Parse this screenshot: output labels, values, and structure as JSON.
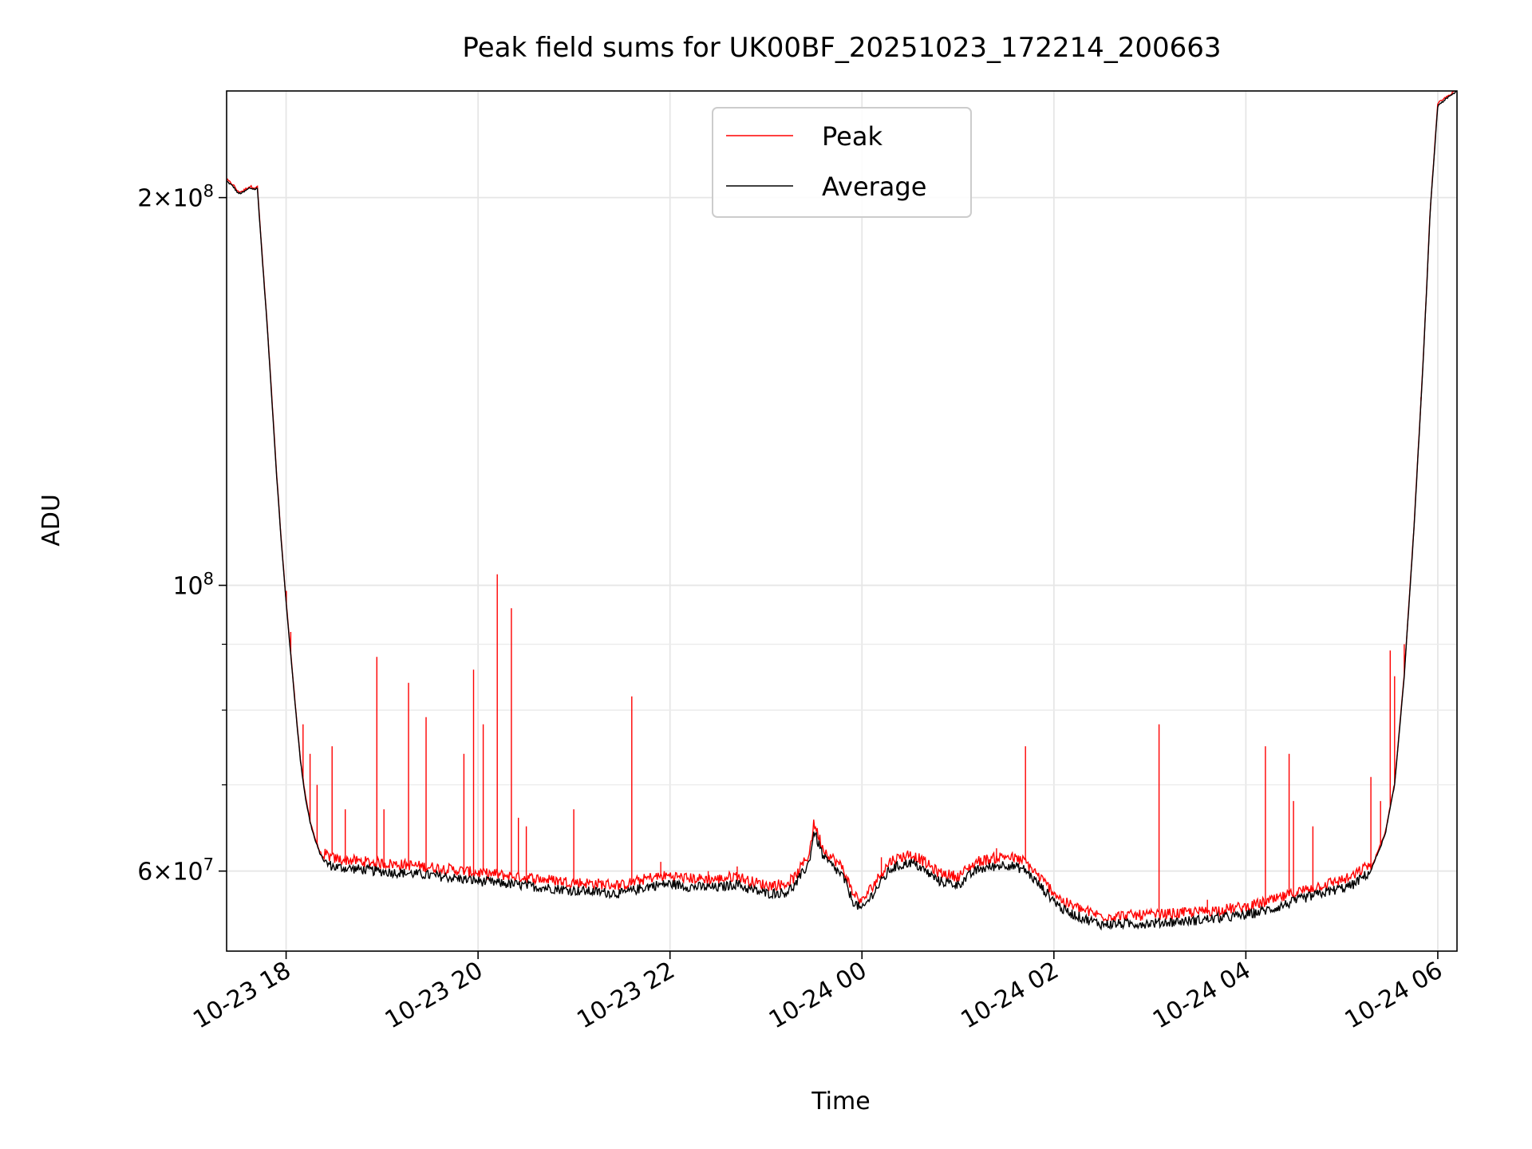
{
  "chart_data": {
    "type": "line",
    "title": "Peak field sums for UK00BF_20251023_172214_200663",
    "xlabel": "Time",
    "ylabel": "ADU",
    "yscale": "log",
    "xlim_hours": [
      -0.62,
      12.2
    ],
    "ylim": [
      52000000,
      242000000
    ],
    "grid": true,
    "legend_position": "upper-center",
    "x_ticks": [
      {
        "hour": 0,
        "label": "10-23 18"
      },
      {
        "hour": 2,
        "label": "10-23 20"
      },
      {
        "hour": 4,
        "label": "10-23 22"
      },
      {
        "hour": 6,
        "label": "10-24 00"
      },
      {
        "hour": 8,
        "label": "10-24 02"
      },
      {
        "hour": 10,
        "label": "10-24 04"
      },
      {
        "hour": 12,
        "label": "10-24 06"
      }
    ],
    "y_major_ticks": [
      {
        "value": 60000000,
        "mant": "6",
        "exp": "7"
      },
      {
        "value": 100000000,
        "mant": "",
        "exp": "8"
      },
      {
        "value": 200000000,
        "mant": "2",
        "exp": "8"
      }
    ],
    "y_minor_ticks": [
      70000000,
      80000000,
      90000000
    ],
    "time_axis_note": "x values are hours relative to 2025-10-23 18:00",
    "series": [
      {
        "name": "Average",
        "color": "#000000",
        "points": [
          [
            -0.62,
            206000000
          ],
          [
            -0.55,
            204000000
          ],
          [
            -0.5,
            201500000
          ],
          [
            -0.45,
            201800000
          ],
          [
            -0.38,
            203500000
          ],
          [
            -0.32,
            203000000
          ],
          [
            -0.3,
            203500000
          ],
          [
            -0.25,
            180000000
          ],
          [
            -0.2,
            160000000
          ],
          [
            -0.15,
            140000000
          ],
          [
            -0.1,
            122000000
          ],
          [
            -0.05,
            108000000
          ],
          [
            0,
            97000000
          ],
          [
            0.05,
            88000000
          ],
          [
            0.1,
            80000000
          ],
          [
            0.15,
            73000000
          ],
          [
            0.2,
            68500000
          ],
          [
            0.25,
            65500000
          ],
          [
            0.3,
            63500000
          ],
          [
            0.35,
            62000000
          ],
          [
            0.4,
            61000000
          ],
          [
            0.5,
            60500000
          ],
          [
            0.7,
            60300000
          ],
          [
            1.0,
            60000000
          ],
          [
            1.3,
            59800000
          ],
          [
            1.6,
            59500000
          ],
          [
            2.0,
            59000000
          ],
          [
            2.5,
            58500000
          ],
          [
            3.0,
            58000000
          ],
          [
            3.5,
            57700000
          ],
          [
            3.8,
            58500000
          ],
          [
            4.0,
            58700000
          ],
          [
            4.2,
            58400000
          ],
          [
            4.5,
            58300000
          ],
          [
            4.7,
            58700000
          ],
          [
            4.8,
            58200000
          ],
          [
            5.0,
            57700000
          ],
          [
            5.2,
            57800000
          ],
          [
            5.3,
            58500000
          ],
          [
            5.45,
            61000000
          ],
          [
            5.5,
            64500000
          ],
          [
            5.6,
            61500000
          ],
          [
            5.8,
            59500000
          ],
          [
            5.9,
            57000000
          ],
          [
            6.0,
            56000000
          ],
          [
            6.1,
            57500000
          ],
          [
            6.3,
            60300000
          ],
          [
            6.5,
            61000000
          ],
          [
            6.6,
            60500000
          ],
          [
            6.8,
            59000000
          ],
          [
            7.0,
            58600000
          ],
          [
            7.2,
            60200000
          ],
          [
            7.5,
            60800000
          ],
          [
            7.7,
            60200000
          ],
          [
            7.9,
            58000000
          ],
          [
            8.1,
            56000000
          ],
          [
            8.3,
            55200000
          ],
          [
            8.5,
            54600000
          ],
          [
            9.0,
            54700000
          ],
          [
            9.5,
            55000000
          ],
          [
            10.0,
            55500000
          ],
          [
            10.3,
            56200000
          ],
          [
            10.6,
            57200000
          ],
          [
            10.9,
            58000000
          ],
          [
            11.1,
            58500000
          ],
          [
            11.3,
            60000000
          ],
          [
            11.45,
            64000000
          ],
          [
            11.55,
            70000000
          ],
          [
            11.65,
            85000000
          ],
          [
            11.75,
            110000000
          ],
          [
            11.85,
            150000000
          ],
          [
            11.92,
            195000000
          ],
          [
            12.0,
            236000000
          ],
          [
            12.2,
            242000000
          ]
        ]
      },
      {
        "name": "Peak",
        "color": "#ff0000",
        "spikes": [
          [
            -0.2,
            148000000
          ],
          [
            -0.12,
            124000000
          ],
          [
            0.0,
            99000000
          ],
          [
            0.05,
            92000000
          ],
          [
            0.18,
            78000000
          ],
          [
            0.25,
            74000000
          ],
          [
            0.32,
            70000000
          ],
          [
            0.48,
            75000000
          ],
          [
            0.62,
            67000000
          ],
          [
            0.95,
            88000000
          ],
          [
            1.02,
            67000000
          ],
          [
            1.28,
            84000000
          ],
          [
            1.46,
            79000000
          ],
          [
            1.85,
            74000000
          ],
          [
            1.95,
            86000000
          ],
          [
            2.05,
            78000000
          ],
          [
            2.2,
            102000000
          ],
          [
            2.35,
            96000000
          ],
          [
            2.42,
            66000000
          ],
          [
            2.5,
            65000000
          ],
          [
            3.0,
            67000000
          ],
          [
            3.6,
            82000000
          ],
          [
            3.9,
            61000000
          ],
          [
            4.4,
            60000000
          ],
          [
            4.7,
            60500000
          ],
          [
            6.2,
            61500000
          ],
          [
            7.4,
            62500000
          ],
          [
            7.7,
            75000000
          ],
          [
            9.1,
            78000000
          ],
          [
            9.6,
            57000000
          ],
          [
            10.2,
            58500000
          ],
          [
            10.2,
            75000000
          ],
          [
            10.45,
            74000000
          ],
          [
            10.5,
            68000000
          ],
          [
            10.7,
            65000000
          ],
          [
            11.3,
            71000000
          ],
          [
            11.4,
            68000000
          ],
          [
            11.5,
            89000000
          ],
          [
            11.55,
            85000000
          ],
          [
            11.65,
            90000000
          ],
          [
            11.78,
            120000000
          ],
          [
            11.82,
            140000000
          ]
        ]
      }
    ]
  }
}
